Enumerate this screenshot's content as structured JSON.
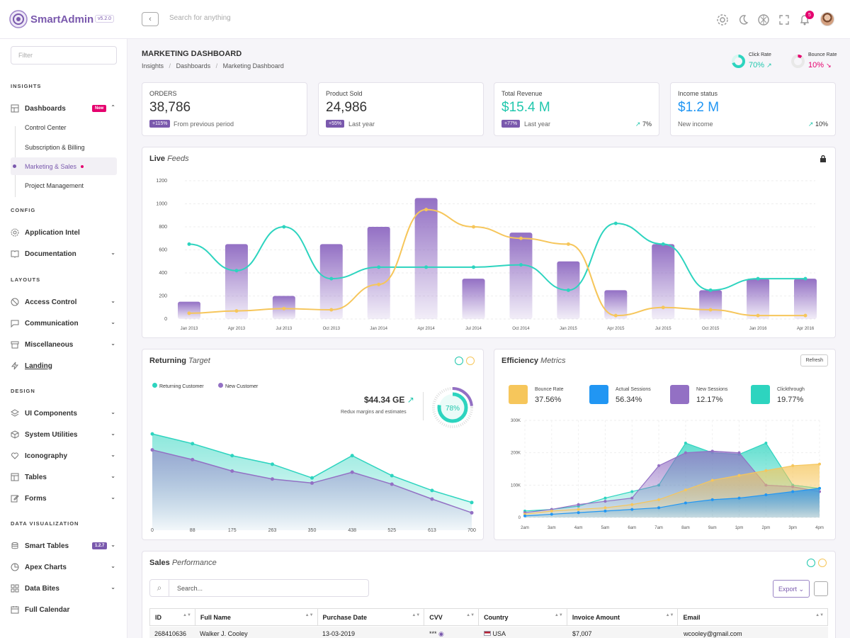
{
  "brand": {
    "name": "SmartAdmin",
    "version": "v5.2.0"
  },
  "topbar": {
    "search_placeholder": "Search for anything",
    "notification_count": "5"
  },
  "sidebar": {
    "filter_placeholder": "Filter",
    "sections": {
      "insights": "INSIGHTS",
      "config": "CONFIG",
      "layouts": "LAYOUTS",
      "design": "DESIGN",
      "data_visualization": "DATA VISUALIZATION"
    },
    "items": {
      "dashboards": "Dashboards",
      "dashboards_badge": "New",
      "control_center": "Control Center",
      "subscription": "Subscription & Billing",
      "marketing": "Marketing & Sales",
      "project": "Project Management",
      "application_intel": "Application Intel",
      "documentation": "Documentation",
      "access_control": "Access Control",
      "communication": "Communication",
      "miscellaneous": "Miscellaneous",
      "landing": "Landing",
      "ui_components": "UI Components",
      "system_utilities": "System Utilities",
      "iconography": "Iconography",
      "tables": "Tables",
      "forms": "Forms",
      "smart_tables": "Smart Tables",
      "smart_tables_badge": "1.2.7",
      "apex_charts": "Apex Charts",
      "data_bites": "Data Bites",
      "full_calendar": "Full Calendar"
    }
  },
  "page": {
    "title": "MARKETING DASHBOARD",
    "breadcrumb": [
      "Insights",
      "Dashboards",
      "Marketing Dashboard"
    ],
    "click_rate": {
      "label": "Click Rate",
      "value": "70%"
    },
    "bounce_rate": {
      "label": "Bounce Rate",
      "value": "10%"
    }
  },
  "stats": [
    {
      "label": "ORDERS",
      "value": "38,786",
      "badge": "+115%",
      "note": "From previous period",
      "trend": "",
      "color": "#333333"
    },
    {
      "label": "Product Sold",
      "value": "24,986",
      "badge": "+55%",
      "note": "Last year",
      "trend": "",
      "color": "#333333"
    },
    {
      "label": "Total Revenue",
      "value": "$15.4 M",
      "badge": "+77%",
      "note": "Last year",
      "trend": "7%",
      "color": "#20c7ad"
    },
    {
      "label": "Income status",
      "value": "$1.2 M",
      "badge": "",
      "note": "New income",
      "trend": "10%",
      "color": "#2196f3"
    }
  ],
  "live_feeds": {
    "title": "Live",
    "title_em": "Feeds"
  },
  "returning": {
    "title": "Returning",
    "title_em": "Target",
    "legend": [
      "Returning Customer",
      "New Customer"
    ],
    "amount": "$44.34 GE",
    "amount_note": "Redux margins and estimates",
    "gauge": "78%"
  },
  "efficiency": {
    "title": "Efficiency",
    "title_em": "Metrics",
    "refresh": "Refresh",
    "metrics": [
      {
        "label": "Bounce Rate",
        "value": "37.56%",
        "color": "#f6c65b"
      },
      {
        "label": "Actual Sessions",
        "value": "56.34%",
        "color": "#2196f3"
      },
      {
        "label": "New Sessions",
        "value": "12.17%",
        "color": "#9370c4"
      },
      {
        "label": "Clickthrough",
        "value": "19.77%",
        "color": "#2dd4bf"
      }
    ]
  },
  "sales": {
    "title": "Sales",
    "title_em": "Performance",
    "search_placeholder": "Search...",
    "export": "Export",
    "columns": [
      "ID",
      "Full Name",
      "Purchase Date",
      "CVV",
      "Country",
      "Invoice Amount",
      "Email"
    ],
    "row": {
      "id": "268410636",
      "name": "Walker J. Cooley",
      "date": "13-03-2019",
      "cvv": "***",
      "country": "USA",
      "amount": "$7,007",
      "email": "wcooley@gmail.com"
    }
  },
  "chart_data": [
    {
      "type": "bar",
      "categories": [
        "Jan 2013",
        "Apr 2013",
        "Jul 2013",
        "Oct 2013",
        "Jan 2014",
        "Apr 2014",
        "Jul 2014",
        "Oct 2014",
        "Jan 2015",
        "Apr 2015",
        "Jul 2015",
        "Oct 2015",
        "Jan 2016",
        "Apr 2016"
      ],
      "series": [
        {
          "values": [
            150,
            650,
            200,
            650,
            800,
            1050,
            350,
            750,
            500,
            250,
            650,
            250,
            350,
            350
          ]
        },
        {
          "values": [
            650,
            420,
            800,
            350,
            450,
            450,
            450,
            470,
            250,
            830,
            650,
            250,
            350,
            350
          ]
        },
        {
          "values": [
            50,
            70,
            90,
            80,
            300,
            950,
            800,
            700,
            650,
            30,
            100,
            80,
            30,
            30
          ]
        }
      ],
      "yticks": [
        0,
        200,
        400,
        600,
        800,
        1000,
        1200
      ],
      "ylim": [
        0,
        1200
      ],
      "colors": [
        "#9370c4",
        "#2dd4bf",
        "#f6c65b"
      ]
    },
    {
      "type": "area",
      "x": [
        0,
        88,
        175,
        263,
        350,
        438,
        525,
        613,
        700
      ],
      "series": [
        {
          "name": "Returning Customer",
          "values": [
            150,
            133,
            112,
            97,
            73,
            112,
            77,
            51,
            30
          ]
        },
        {
          "name": "New Customer",
          "values": [
            122,
            105,
            85,
            71,
            64,
            83,
            62,
            36,
            12
          ]
        }
      ],
      "ylim": [
        0,
        170
      ],
      "colors": [
        "#2dd4bf",
        "#9370c4"
      ]
    },
    {
      "type": "area",
      "categories": [
        "2am",
        "3am",
        "4am",
        "5am",
        "6am",
        "7am",
        "8am",
        "9am",
        "1pm",
        "2pm",
        "3pm",
        "4pm"
      ],
      "yticks": [
        "0",
        "100K",
        "200K",
        "300K"
      ],
      "ylim": [
        0,
        300
      ],
      "series": [
        {
          "values": [
            20,
            25,
            35,
            60,
            80,
            100,
            230,
            200,
            195,
            230,
            100,
            90
          ]
        },
        {
          "values": [
            15,
            25,
            40,
            50,
            60,
            160,
            200,
            205,
            200,
            100,
            95,
            80
          ]
        },
        {
          "values": [
            10,
            20,
            25,
            30,
            40,
            55,
            85,
            115,
            130,
            145,
            160,
            165
          ]
        },
        {
          "values": [
            5,
            10,
            15,
            20,
            25,
            30,
            45,
            55,
            60,
            70,
            80,
            90
          ]
        }
      ],
      "colors": [
        "#2dd4bf",
        "#9370c4",
        "#f6c65b",
        "#2196f3"
      ]
    }
  ]
}
